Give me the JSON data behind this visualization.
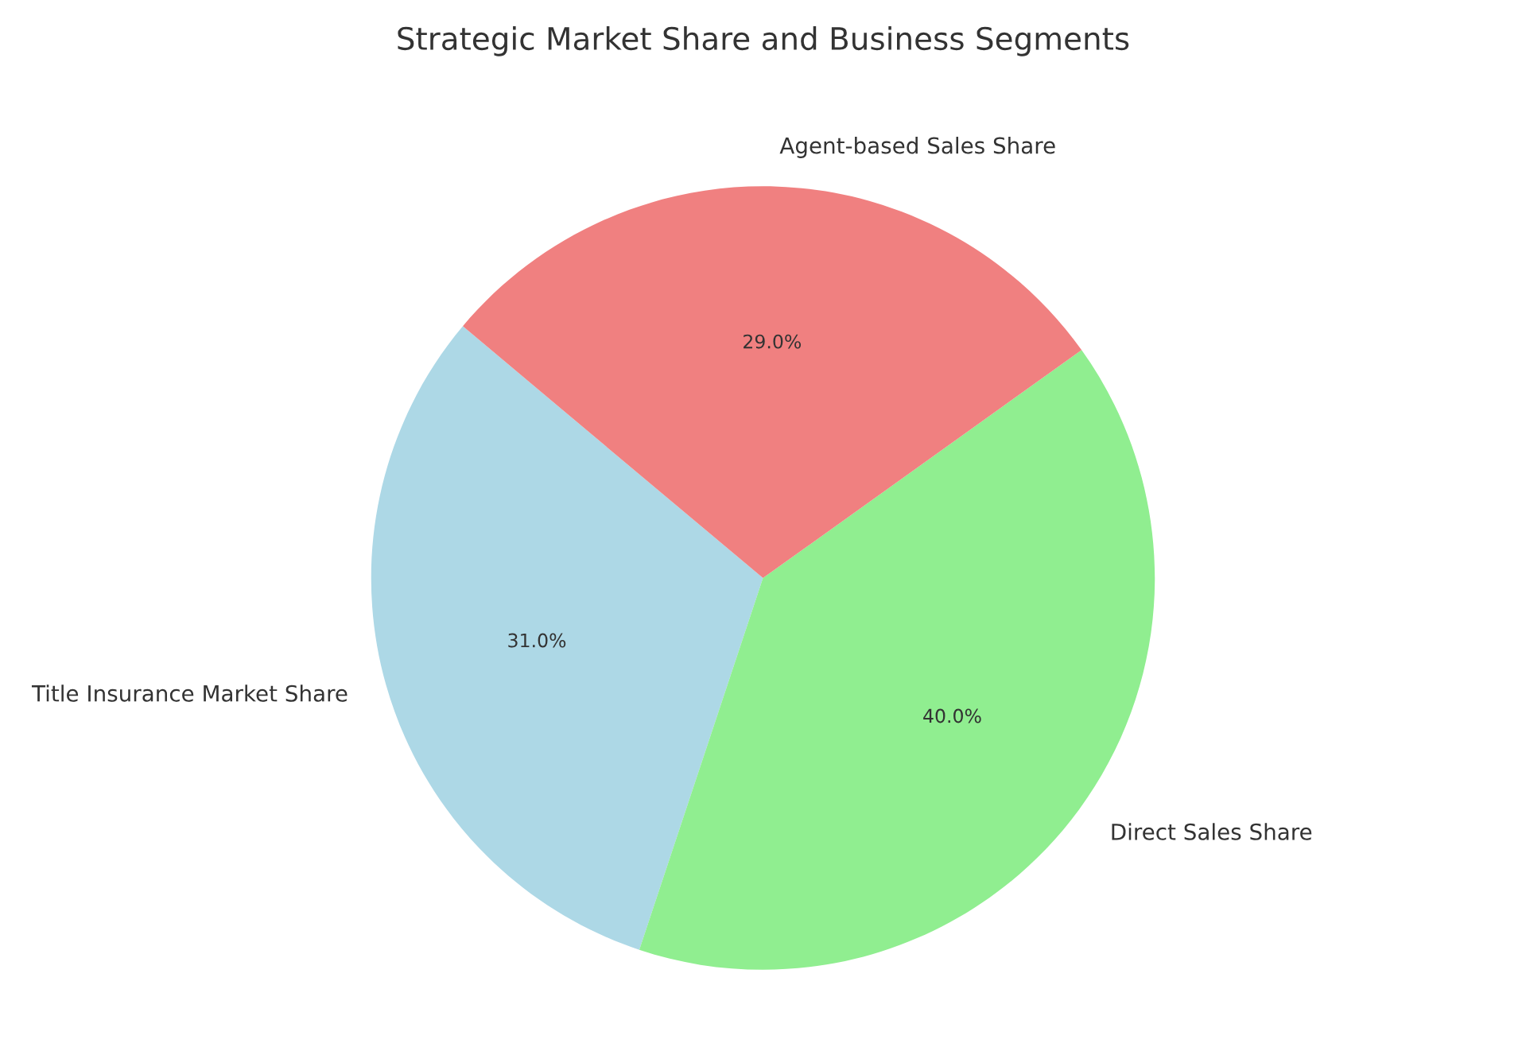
{
  "chart_data": {
    "type": "pie",
    "title": "Strategic Market Share and Business Segments",
    "categories": [
      "Title Insurance Market Share",
      "Direct Sales Share",
      "Agent-based Sales Share"
    ],
    "values": [
      31,
      40,
      29
    ],
    "colors": [
      "#add8e6",
      "#90ee90",
      "#f08080"
    ],
    "value_labels": [
      "31.0%",
      "40.0%",
      "29.0%"
    ]
  }
}
